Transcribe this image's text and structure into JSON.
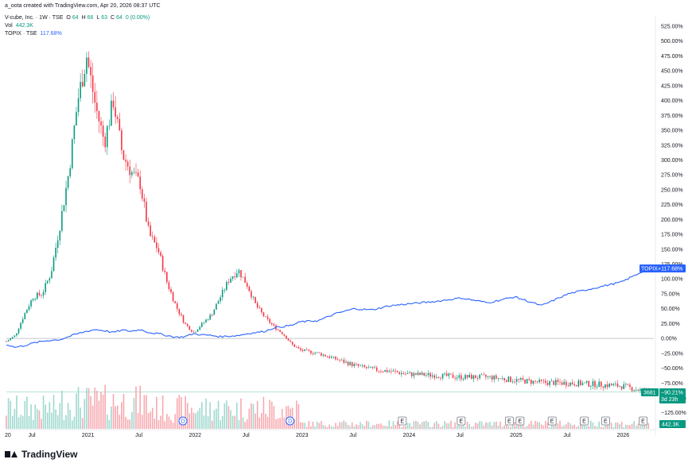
{
  "caption": "a_oota created with TradingView.com, Apr 20, 2026 08:37 UTC",
  "legend": {
    "symbol": "V-cube, Inc. · 1W · TSE",
    "o_label": "O",
    "o_value": "64",
    "h_label": "H",
    "h_value": "66",
    "l_label": "L",
    "l_value": "63",
    "c_label": "C",
    "c_value": "64",
    "change": "0 (0.00%)",
    "vol_label": "Vol",
    "vol_value": "442.3K",
    "topix_label": "TOPIX · TSE",
    "topix_value": "117.68%"
  },
  "badges": {
    "topix_name": "TOPIX",
    "topix_value": "+117.68%",
    "price": "3681",
    "pct": "−90.21%",
    "countdown": "3d 23h",
    "volume": "442.3K"
  },
  "footer": {
    "brand": "TradingView"
  },
  "colors": {
    "up": "#089981",
    "down": "#f23645",
    "topix": "#2962ff",
    "vol_up": "#9fd9cf",
    "vol_down": "#f7a9b0"
  },
  "chart_data": {
    "type": "line",
    "y_axis_unit": "percent change",
    "y_ticks": [
      "525.00%",
      "500.00%",
      "475.00%",
      "450.00%",
      "425.00%",
      "400.00%",
      "375.00%",
      "350.00%",
      "325.00%",
      "300.00%",
      "275.00%",
      "250.00%",
      "225.00%",
      "200.00%",
      "175.00%",
      "150.00%",
      "125.00%",
      "100.00%",
      "75.00%",
      "50.00%",
      "25.00%",
      "0.00%",
      "−25.00%",
      "−50.00%",
      "−75.00%",
      "−100.00%",
      "−125.00%"
    ],
    "x_ticks": [
      "20",
      "Jul",
      "2021",
      "Jul",
      "2022",
      "Jul",
      "2023",
      "Jul",
      "2024",
      "Jul",
      "2025",
      "Jul",
      "2026"
    ],
    "ylim": [
      -150,
      530
    ],
    "x": [
      "2020-04",
      "2020-05",
      "2020-06",
      "2020-07",
      "2020-08",
      "2020-09",
      "2020-10",
      "2020-11",
      "2020-12",
      "2021-01",
      "2021-02",
      "2021-03",
      "2021-04",
      "2021-05",
      "2021-06",
      "2021-07",
      "2021-08",
      "2021-09",
      "2021-10",
      "2021-11",
      "2021-12",
      "2022-01",
      "2022-02",
      "2022-03",
      "2022-04",
      "2022-05",
      "2022-06",
      "2022-07",
      "2022-08",
      "2022-09",
      "2022-10",
      "2022-11",
      "2022-12",
      "2023-01",
      "2023-03",
      "2023-05",
      "2023-07",
      "2023-09",
      "2023-11",
      "2024-01",
      "2024-04",
      "2024-07",
      "2024-10",
      "2025-01",
      "2025-04",
      "2025-07",
      "2025-10",
      "2026-01",
      "2026-04"
    ],
    "series": [
      {
        "name": "V-cube, Inc.",
        "values": [
          -5,
          5,
          40,
          70,
          75,
          110,
          190,
          280,
          400,
          475,
          390,
          330,
          400,
          310,
          280,
          260,
          175,
          150,
          95,
          55,
          25,
          10,
          25,
          40,
          70,
          100,
          115,
          90,
          55,
          35,
          20,
          8,
          -10,
          -20,
          -25,
          -35,
          -45,
          -52,
          -55,
          -60,
          -62,
          -65,
          -65,
          -70,
          -74,
          -75,
          -77,
          -80,
          -90
        ]
      },
      {
        "name": "TOPIX",
        "values": [
          -10,
          -15,
          -12,
          -8,
          -5,
          -3,
          -2,
          3,
          8,
          12,
          15,
          13,
          10,
          14,
          12,
          15,
          10,
          8,
          5,
          2,
          3,
          8,
          6,
          5,
          3,
          4,
          5,
          8,
          10,
          12,
          18,
          20,
          22,
          28,
          30,
          42,
          50,
          48,
          55,
          58,
          62,
          68,
          60,
          70,
          55,
          75,
          85,
          95,
          117.68
        ]
      }
    ],
    "annotations": [
      "D",
      "D",
      "E",
      "E",
      "E",
      "E",
      "E",
      "E",
      "E",
      "E"
    ]
  }
}
